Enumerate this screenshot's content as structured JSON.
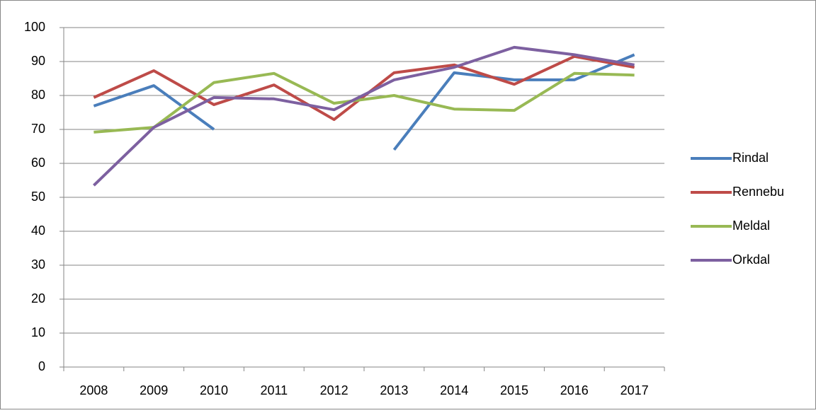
{
  "chart_data": {
    "type": "line",
    "categories": [
      "2008",
      "2009",
      "2010",
      "2011",
      "2012",
      "2013",
      "2014",
      "2015",
      "2016",
      "2017"
    ],
    "series": [
      {
        "name": "Rindal",
        "color": "#4a7ebb",
        "values": [
          76.9,
          82.9,
          70,
          null,
          null,
          64,
          86.7,
          84.6,
          84.6,
          92
        ]
      },
      {
        "name": "Rennebu",
        "color": "#be4b48",
        "values": [
          79.4,
          87.3,
          77.3,
          83.1,
          72.9,
          86.7,
          89,
          83.3,
          91.5,
          88.3
        ]
      },
      {
        "name": "Meldal",
        "color": "#98b954",
        "values": [
          69.2,
          70.6,
          83.8,
          86.5,
          77.7,
          80,
          76,
          75.6,
          86.5,
          86
        ]
      },
      {
        "name": "Orkdal",
        "color": "#7d60a0",
        "values": [
          53.5,
          70.6,
          79.4,
          79,
          75.8,
          84.6,
          88.3,
          94.2,
          92,
          89
        ]
      }
    ],
    "ylim": [
      0,
      100
    ],
    "yticks": [
      0,
      10,
      20,
      30,
      40,
      50,
      60,
      70,
      80,
      90,
      100
    ],
    "grid": true,
    "legend": "right"
  }
}
